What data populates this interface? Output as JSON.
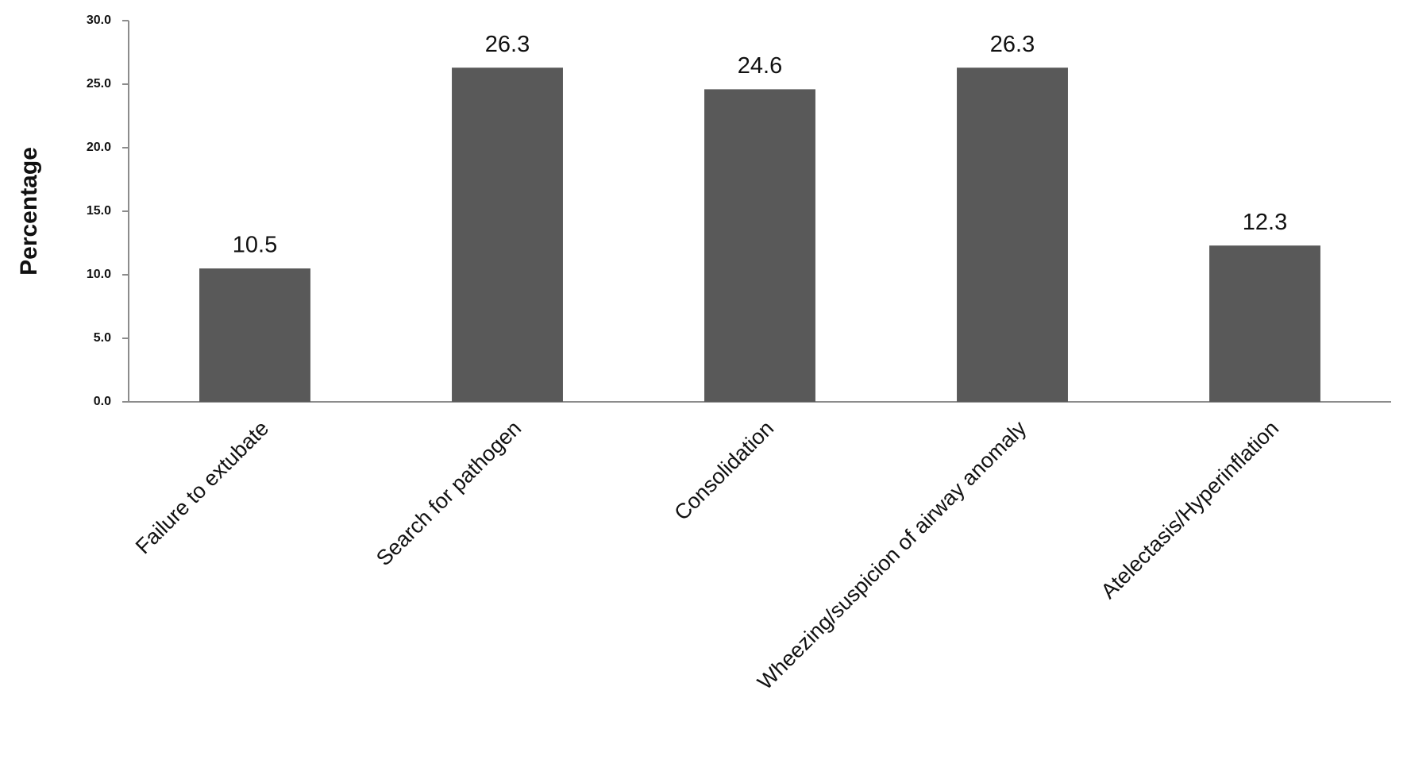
{
  "chart_data": {
    "type": "bar",
    "y_label": "Percentage",
    "categories": [
      "Failure to extubate",
      "Search for pathogen",
      "Consolidation",
      "Wheezing/suspicion of airway anomaly",
      "Atelectasis/Hyperinflation"
    ],
    "values": [
      10.5,
      26.3,
      24.6,
      26.3,
      12.3
    ],
    "color": "#595959",
    "ylim": [
      0,
      30
    ],
    "yticks": [
      {
        "value": 0,
        "label": "0.0"
      },
      {
        "value": 5,
        "label": "5.0"
      },
      {
        "value": 10,
        "label": "10.0"
      },
      {
        "value": 15,
        "label": "15.0"
      },
      {
        "value": 20,
        "label": "20.0"
      },
      {
        "value": 25,
        "label": "25.0"
      },
      {
        "value": 30,
        "label": "30.0"
      }
    ],
    "grid": false
  }
}
